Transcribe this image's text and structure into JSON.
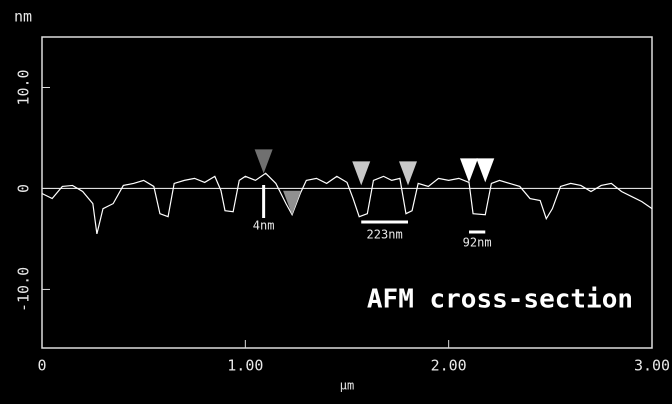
{
  "chart_data": {
    "type": "line",
    "y_label": "nm",
    "x_label": "µm",
    "xlim": [
      0,
      3
    ],
    "xticks": [
      0,
      {
        "value": 1,
        "label": "1.00"
      },
      {
        "value": 2,
        "label": "2.00"
      },
      {
        "value": 3,
        "label": "3.00"
      }
    ],
    "ylim": [
      -15.8,
      15
    ],
    "yticks": [
      {
        "value": -10,
        "label": "-10.0"
      },
      0,
      {
        "value": 10,
        "label": "10.0"
      }
    ],
    "color": "#ffffff",
    "x": [
      0,
      0.05,
      0.1,
      0.15,
      0.2,
      0.25,
      0.27,
      0.3,
      0.35,
      0.4,
      0.45,
      0.5,
      0.55,
      0.58,
      0.62,
      0.65,
      0.7,
      0.75,
      0.8,
      0.85,
      0.88,
      0.9,
      0.94,
      0.97,
      1,
      1.05,
      1.1,
      1.15,
      1.2,
      1.23,
      1.27,
      1.3,
      1.35,
      1.4,
      1.45,
      1.5,
      1.53,
      1.56,
      1.6,
      1.63,
      1.68,
      1.72,
      1.76,
      1.79,
      1.82,
      1.85,
      1.9,
      1.95,
      2,
      2.05,
      2.1,
      2.12,
      2.18,
      2.21,
      2.25,
      2.3,
      2.35,
      2.4,
      2.45,
      2.48,
      2.51,
      2.55,
      2.6,
      2.65,
      2.7,
      2.75,
      2.8,
      2.85,
      2.9,
      2.95,
      3
    ],
    "values": [
      -0.5,
      -1,
      0.2,
      0.3,
      -0.3,
      -1.5,
      -4.5,
      -2,
      -1.5,
      0.3,
      0.5,
      0.8,
      0.2,
      -2.5,
      -2.8,
      0.5,
      0.8,
      1,
      0.6,
      1.2,
      -0.2,
      -2.2,
      -2.3,
      0.8,
      1.2,
      0.8,
      1.5,
      0.5,
      -1.5,
      -2.6,
      -0.5,
      0.8,
      1,
      0.5,
      1.2,
      0.6,
      -1,
      -2.8,
      -2.5,
      0.8,
      1.2,
      0.8,
      1,
      -2.5,
      -2.2,
      0.5,
      0.2,
      1,
      0.8,
      1,
      0.6,
      -2.5,
      -2.6,
      0.5,
      0.8,
      0.5,
      0.2,
      -1,
      -1.2,
      -3,
      -2,
      0.2,
      0.5,
      0.3,
      -0.3,
      0.3,
      0.5,
      -0.3,
      -0.8,
      -1.3,
      -2
    ],
    "cursors": [
      {
        "x": 1.09,
        "y": 1.5,
        "color": "#707070"
      },
      {
        "x": 1.23,
        "y": -2.6,
        "color": "#909090"
      },
      {
        "x": 1.57,
        "y": 0.3,
        "color": "#c8c8c8"
      },
      {
        "x": 1.8,
        "y": 0.3,
        "color": "#c8c8c8"
      },
      {
        "x": 2.1,
        "y": 0.6,
        "color": "#ffffff"
      },
      {
        "x": 2.18,
        "y": 0.6,
        "color": "#ffffff"
      }
    ],
    "annotations": [
      "4nm",
      "223nm",
      "92nm",
      "AFM cross-section"
    ]
  }
}
